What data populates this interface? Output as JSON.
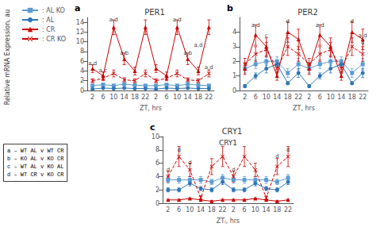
{
  "chart_data": [
    {
      "type": "line",
      "panel_label": "a",
      "title": "PER1",
      "xlabel": "ZT, hrs",
      "ylabel": "Relative mRNA Expression, au",
      "legend": "upper left",
      "grid": false,
      "categories": [
        "2",
        "6",
        "10",
        "14",
        "18",
        "22",
        "2",
        "6",
        "10",
        "14",
        "18",
        "22"
      ],
      "ylim": [
        0,
        15
      ],
      "yticks": [
        0,
        2,
        4,
        6,
        8,
        10,
        12,
        14
      ],
      "series": [
        {
          "name": ": AL KO",
          "color": "#5B9BD5",
          "marker": "square",
          "line_style": "solid",
          "values": [
            1.0,
            1.2,
            1.0,
            1.3,
            1.1,
            1.0,
            1.0,
            1.2,
            1.0,
            1.3,
            1.1,
            1.0
          ],
          "errors": [
            0.2,
            0.2,
            0.2,
            0.3,
            0.2,
            0.2,
            0.2,
            0.2,
            0.2,
            0.3,
            0.2,
            0.2
          ]
        },
        {
          "name": ": AL",
          "color": "#2E75B6",
          "marker": "circle",
          "line_style": "solid",
          "values": [
            0.3,
            0.5,
            0.4,
            0.5,
            0.4,
            0.4,
            0.3,
            0.5,
            0.4,
            0.5,
            0.4,
            0.4
          ],
          "errors": [
            0.1,
            0.1,
            0.1,
            0.1,
            0.1,
            0.1,
            0.1,
            0.1,
            0.1,
            0.1,
            0.1,
            0.1
          ]
        },
        {
          "name": ": CR",
          "color": "#CC0000",
          "marker": "triangle",
          "line_style": "solid",
          "values": [
            4.5,
            3.0,
            13.0,
            6.5,
            4.0,
            13.0,
            4.5,
            3.0,
            13.0,
            6.5,
            4.0,
            13.0
          ],
          "errors": [
            0.8,
            0.8,
            1.5,
            1.2,
            0.8,
            1.5,
            0.8,
            0.8,
            1.5,
            1.2,
            0.8,
            1.5
          ]
        },
        {
          "name": ": CR KO",
          "color": "#CC0000",
          "marker": "x",
          "line_style": "dashed",
          "values": [
            2.0,
            2.5,
            3.5,
            2.2,
            2.0,
            3.5,
            2.0,
            2.5,
            3.5,
            2.2,
            2.0,
            3.5
          ],
          "errors": [
            0.4,
            0.5,
            0.7,
            0.4,
            0.4,
            0.7,
            0.4,
            0.5,
            0.7,
            0.4,
            0.4,
            0.7
          ]
        }
      ],
      "annotations": [
        {
          "index": 0,
          "y": 4.8,
          "text": "a,d"
        },
        {
          "index": 1,
          "y": 3.3,
          "text": "a,c"
        },
        {
          "index": 2,
          "y": 13.8,
          "text": "a,d"
        },
        {
          "index": 3,
          "y": 7.0,
          "text": "a,b"
        },
        {
          "index": 8,
          "y": 13.8,
          "text": "a,d"
        },
        {
          "index": 9,
          "y": 7.0,
          "text": "a,b"
        },
        {
          "index": 10,
          "y": 8.5,
          "text": "a,d"
        },
        {
          "index": 11,
          "y": 4.0,
          "text": "a,d"
        }
      ]
    },
    {
      "type": "line",
      "panel_label": "b",
      "title": "PER2",
      "xlabel": "ZT, hrs",
      "grid": false,
      "categories": [
        "2",
        "6",
        "10",
        "14",
        "18",
        "22",
        "2",
        "6",
        "10",
        "14",
        "18",
        "22"
      ],
      "ylim": [
        0,
        5
      ],
      "yticks": [
        0,
        1,
        2,
        3,
        4
      ],
      "series": [
        {
          "name": ": AL KO",
          "color": "#5B9BD5",
          "marker": "square",
          "line_style": "solid",
          "values": [
            1.5,
            1.8,
            2.0,
            2.0,
            1.2,
            1.8,
            1.5,
            1.8,
            2.0,
            2.0,
            1.2,
            1.8
          ],
          "errors": [
            0.3,
            0.3,
            0.3,
            0.3,
            0.3,
            0.4,
            0.3,
            0.3,
            0.3,
            0.3,
            0.3,
            0.4
          ]
        },
        {
          "name": ": AL",
          "color": "#2E75B6",
          "marker": "circle",
          "line_style": "solid",
          "values": [
            0.3,
            1.0,
            1.5,
            1.8,
            0.5,
            1.2,
            0.3,
            1.0,
            1.5,
            1.8,
            0.5,
            1.2
          ],
          "errors": [
            0.1,
            0.2,
            0.3,
            0.2,
            0.1,
            0.3,
            0.1,
            0.2,
            0.3,
            0.2,
            0.1,
            0.3
          ]
        },
        {
          "name": ": CR",
          "color": "#CC0000",
          "marker": "triangle",
          "line_style": "solid",
          "values": [
            1.5,
            3.8,
            3.0,
            1.0,
            4.0,
            3.5,
            1.5,
            3.8,
            3.0,
            1.0,
            4.0,
            3.5
          ],
          "errors": [
            0.4,
            0.7,
            0.6,
            0.3,
            0.7,
            0.7,
            0.4,
            0.7,
            0.6,
            0.3,
            0.7,
            0.7
          ]
        },
        {
          "name": ": CR KO",
          "color": "#CC0000",
          "marker": "x",
          "line_style": "dashed",
          "values": [
            1.8,
            2.5,
            2.8,
            1.5,
            3.0,
            2.5,
            1.8,
            2.5,
            2.8,
            1.5,
            3.0,
            2.5
          ],
          "errors": [
            0.4,
            0.5,
            0.5,
            0.3,
            0.6,
            0.5,
            0.4,
            0.5,
            0.5,
            0.3,
            0.6,
            0.5
          ]
        }
      ],
      "annotations": [
        {
          "index": 1,
          "y": 4.2,
          "text": "a,d"
        },
        {
          "index": 2,
          "y": 3.5,
          "text": "c"
        },
        {
          "index": 4,
          "y": 4.5,
          "text": "d"
        },
        {
          "index": 7,
          "y": 4.2,
          "text": "a,d"
        },
        {
          "index": 10,
          "y": 4.5,
          "text": "d"
        },
        {
          "index": 11,
          "y": 3.5,
          "text": "a,d"
        },
        {
          "index": 11,
          "y": 3.0,
          "text": "d"
        }
      ]
    },
    {
      "type": "line",
      "panel_label": "c",
      "title": "CRY1",
      "subtitle": "CRY1",
      "xlabel": "ZTᵢ, hrs",
      "grid": false,
      "categories": [
        "2",
        "6",
        "10",
        "14",
        "18",
        "22",
        "2",
        "6",
        "10",
        "14",
        "18",
        "22"
      ],
      "ylim": [
        0,
        10
      ],
      "yticks": [
        0,
        2,
        4,
        6,
        8,
        10
      ],
      "series": [
        {
          "name": ": AL KO",
          "color": "#5B9BD5",
          "marker": "square",
          "line_style": "solid",
          "values": [
            3.5,
            3.5,
            3.5,
            3.5,
            3.2,
            3.8,
            3.5,
            3.5,
            3.5,
            3.5,
            3.2,
            3.8
          ],
          "errors": [
            0.5,
            0.5,
            0.5,
            0.5,
            0.4,
            0.5,
            0.5,
            0.5,
            0.5,
            0.5,
            0.4,
            0.5
          ]
        },
        {
          "name": ": AL",
          "color": "#2E75B6",
          "marker": "circle",
          "line_style": "solid",
          "values": [
            2.0,
            2.0,
            3.0,
            2.2,
            2.0,
            3.2,
            2.0,
            2.0,
            3.0,
            2.2,
            2.0,
            3.2
          ],
          "errors": [
            0.3,
            0.3,
            0.4,
            0.3,
            0.3,
            0.4,
            0.3,
            0.3,
            0.4,
            0.3,
            0.3,
            0.4
          ]
        },
        {
          "name": ": CR",
          "color": "#CC0000",
          "marker": "triangle",
          "line_style": "solid",
          "values": [
            0.5,
            0.5,
            0.7,
            0.5,
            0.3,
            0.5,
            0.5,
            0.5,
            0.7,
            0.5,
            0.3,
            0.5
          ],
          "errors": [
            0.1,
            0.1,
            0.1,
            0.1,
            0.1,
            0.1,
            0.1,
            0.1,
            0.1,
            0.1,
            0.1,
            0.1
          ]
        },
        {
          "name": ": CR KO",
          "color": "#CC0000",
          "marker": "x",
          "line_style": "dashed",
          "values": [
            4.0,
            7.0,
            5.0,
            0.8,
            5.5,
            7.0,
            4.0,
            7.0,
            5.0,
            0.8,
            5.5,
            7.0
          ],
          "errors": [
            0.8,
            1.5,
            1.0,
            0.3,
            1.2,
            1.5,
            0.8,
            1.5,
            1.0,
            0.3,
            1.2,
            1.5
          ]
        }
      ],
      "annotations": [
        {
          "index": 0,
          "y": 4.5,
          "text": "d"
        },
        {
          "index": 1,
          "y": 7.5,
          "text": "d"
        },
        {
          "index": 2,
          "y": 5.5,
          "text": "d"
        },
        {
          "index": 6,
          "y": 4.5,
          "text": "d"
        },
        {
          "index": 10,
          "y": 6.5,
          "text": "d"
        },
        {
          "index": 11,
          "y": 7.5,
          "text": "d"
        }
      ],
      "annotation_box": [
        "a – WT AL v WT CR",
        "b – KO AL v KO CR",
        "c – WT AL v KO AL",
        "d – WT CR v KO CR"
      ]
    }
  ]
}
